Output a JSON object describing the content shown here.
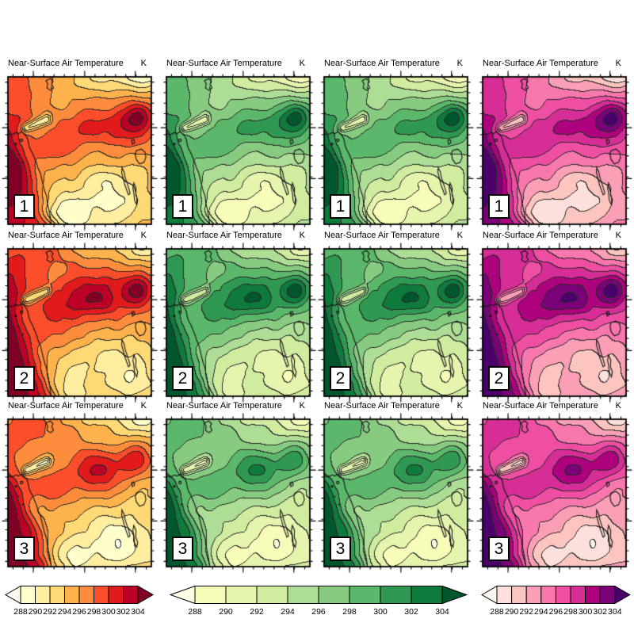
{
  "chart_data": {
    "type": "heatmap",
    "subtype": "filled_contour_map_panel_grid",
    "panel_title": "Near-Surface Air Temperature",
    "unit_label": "K",
    "layout": {
      "rows": 3,
      "cols": 4,
      "row_labels": [
        "1",
        "2",
        "3"
      ],
      "grid_on": false
    },
    "contour_levels": [
      288,
      290,
      292,
      294,
      296,
      298,
      300,
      302,
      304
    ],
    "colorbar_tick_labels": [
      "288",
      "290",
      "292",
      "294",
      "296",
      "298",
      "300",
      "302",
      "304"
    ],
    "colormaps": {
      "YlOrRd": {
        "below": "#FFFFF2",
        "fill": [
          "#FFFFCC",
          "#FFEDA0",
          "#FED976",
          "#FEB24C",
          "#FD8D3C",
          "#FC4E2A",
          "#E31A1C",
          "#BD0026"
        ],
        "above": "#800026"
      },
      "YlGn": {
        "below": "#FFFFE8",
        "fill": [
          "#F7FCB9",
          "#E5F5AE",
          "#D0EC9F",
          "#AEDD96",
          "#86CB80",
          "#5BB86A",
          "#2F9852",
          "#0E7A3B"
        ],
        "above": "#00572D"
      },
      "RdPu": {
        "below": "#FFF7F3",
        "fill": [
          "#FDE0DD",
          "#FCC5C0",
          "#FA9FB5",
          "#F877AC",
          "#EE4FA3",
          "#D62E96",
          "#AE017E",
          "#7A0177"
        ],
        "above": "#49006A"
      }
    },
    "panels": [
      {
        "badge": "1",
        "colormap": "YlOrRd"
      },
      {
        "badge": "1",
        "colormap": "YlGn"
      },
      {
        "badge": "1",
        "colormap": "YlGn"
      },
      {
        "badge": "1",
        "colormap": "RdPu"
      },
      {
        "badge": "2",
        "colormap": "YlOrRd"
      },
      {
        "badge": "2",
        "colormap": "YlGn"
      },
      {
        "badge": "2",
        "colormap": "YlGn"
      },
      {
        "badge": "2",
        "colormap": "RdPu"
      },
      {
        "badge": "3",
        "colormap": "YlOrRd"
      },
      {
        "badge": "3",
        "colormap": "YlGn"
      },
      {
        "badge": "3",
        "colormap": "YlGn"
      },
      {
        "badge": "3",
        "colormap": "RdPu"
      }
    ],
    "colorbars": [
      {
        "colormap": "YlOrRd",
        "orientation": "horizontal",
        "extend": "both"
      },
      {
        "colormap": "YlGn",
        "orientation": "horizontal",
        "extend": "both"
      },
      {
        "colormap": "RdPu",
        "orientation": "horizontal",
        "extend": "both"
      }
    ]
  }
}
